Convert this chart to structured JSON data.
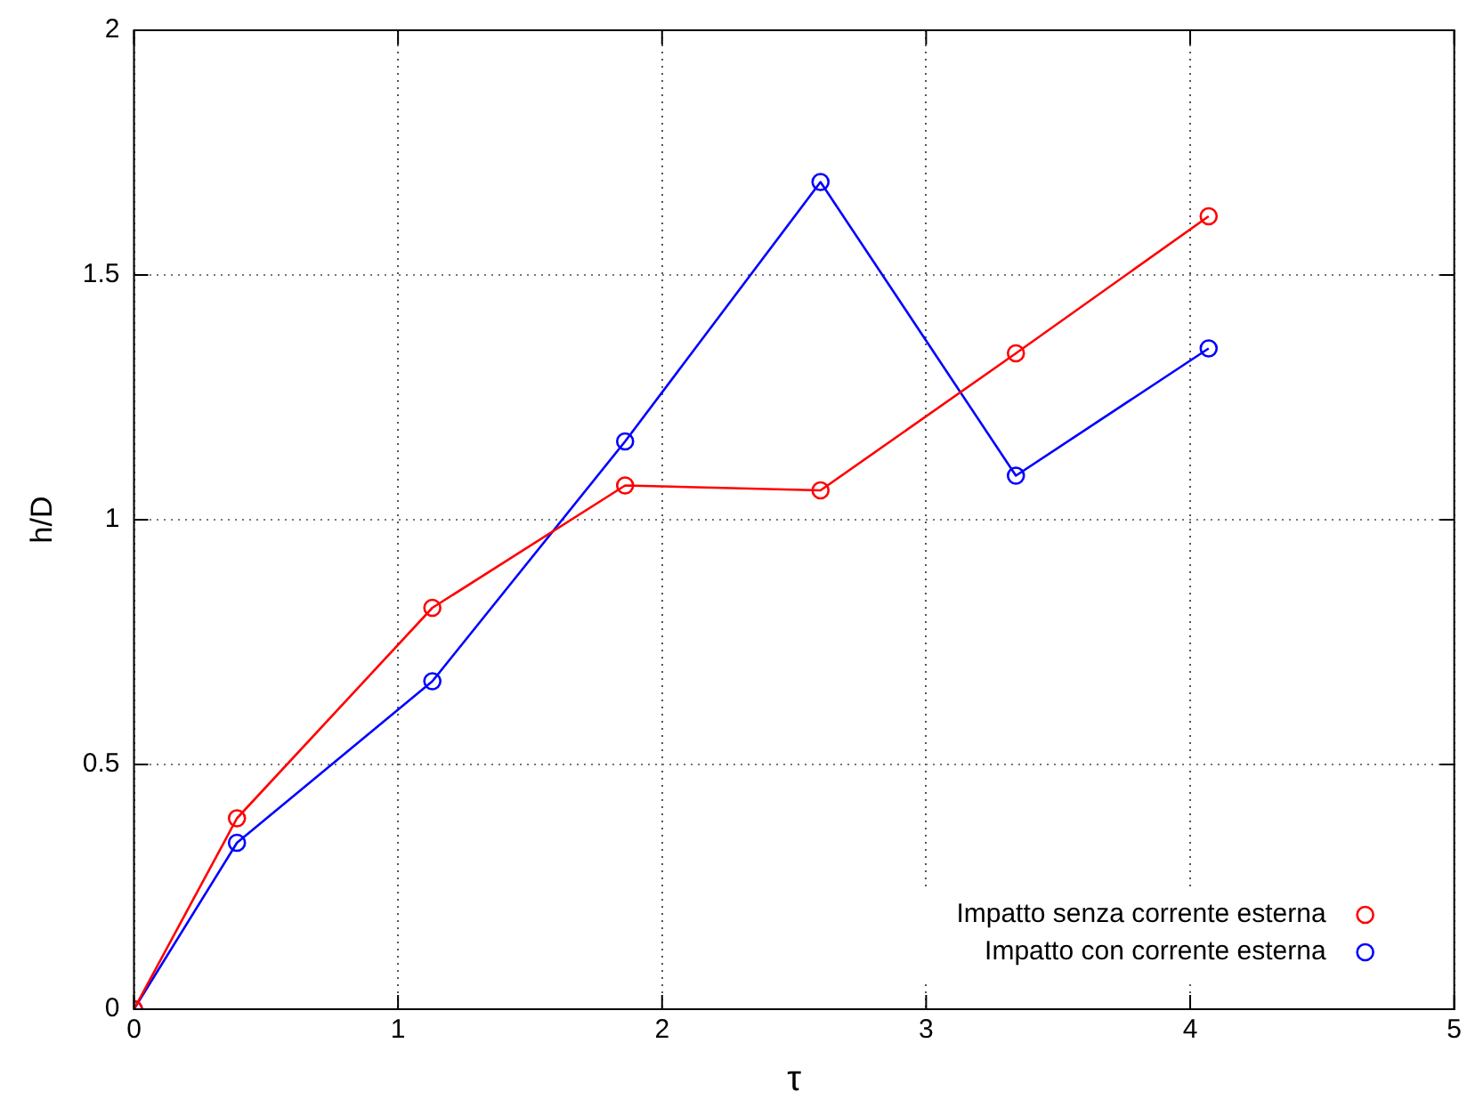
{
  "chart_data": {
    "type": "line",
    "xlabel": "τ",
    "ylabel": "h/D",
    "xlim": [
      0,
      5
    ],
    "xticks": [
      0,
      1,
      2,
      3,
      4,
      5
    ],
    "ylim": [
      0,
      2
    ],
    "yticks": [
      0,
      0.5,
      1,
      1.5,
      2
    ],
    "grid": true,
    "legend": "bottom right",
    "marker": "circle",
    "line_style": "solid",
    "series": [
      {
        "name": "Impatto senza corrente esterna",
        "color": "#ff0000",
        "x": [
          0,
          0.39,
          1.13,
          1.86,
          2.6,
          3.34,
          4.07
        ],
        "values": [
          0,
          0.39,
          0.82,
          1.07,
          1.06,
          1.34,
          1.62
        ]
      },
      {
        "name": "Impatto con corrente esterna",
        "color": "#0000ff",
        "x": [
          0,
          0.39,
          1.13,
          1.86,
          2.6,
          3.34,
          4.07
        ],
        "values": [
          0,
          0.34,
          0.67,
          1.16,
          1.69,
          1.09,
          1.35
        ]
      }
    ]
  }
}
